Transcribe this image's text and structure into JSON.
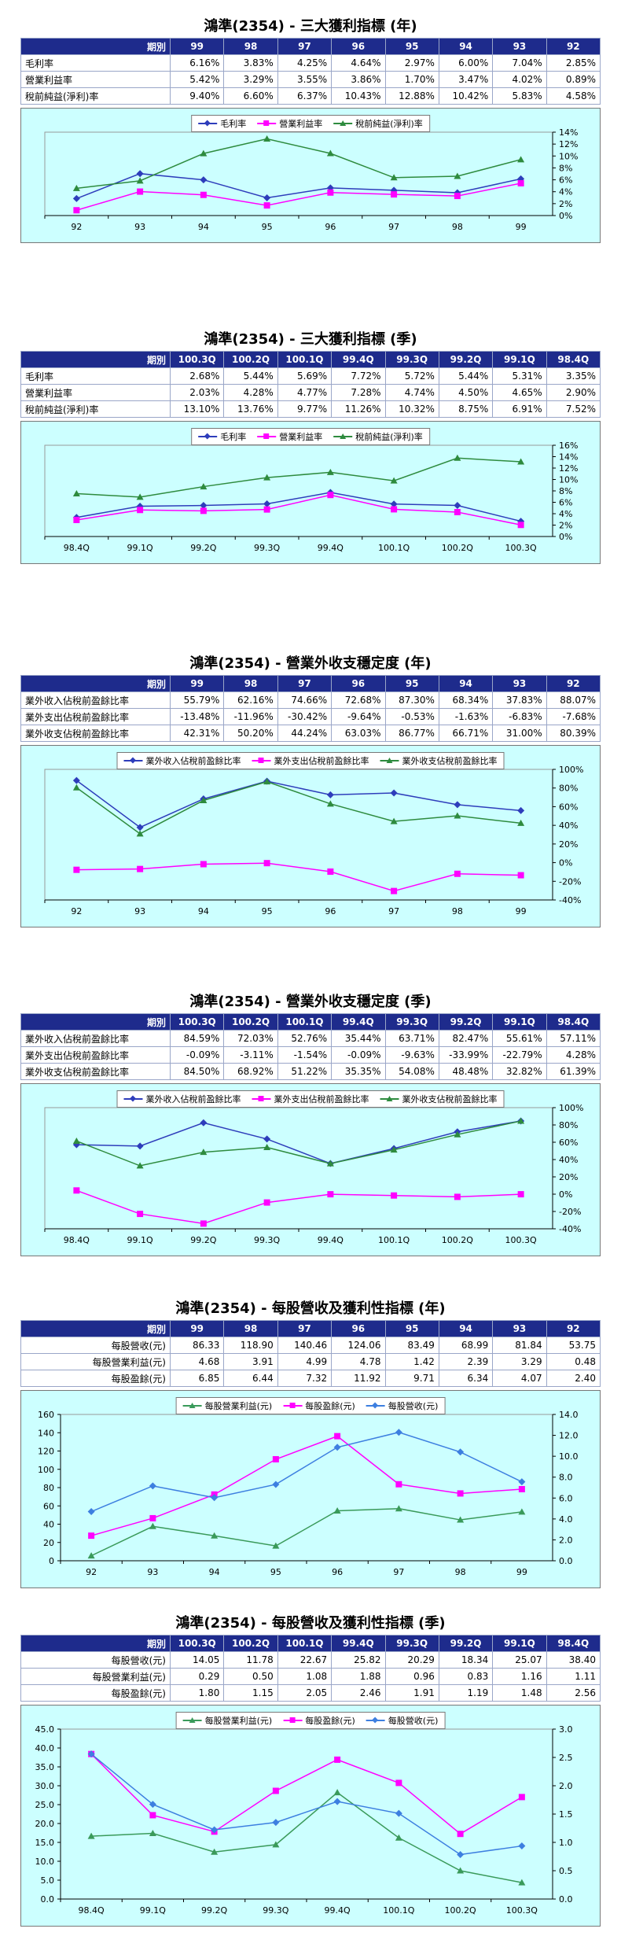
{
  "colors": {
    "header_bg": "#1e2b8c",
    "chart_bg": "#ccffff",
    "series_blue": "#2e3dbb",
    "series_magenta": "#ff00ff",
    "series_green": "#2e8b3e",
    "series_lightblue": "#3d7fe0",
    "series_green2": "#3a9a5a"
  },
  "sections": [
    {
      "title": "鴻準(2354) - 三大獲利指標 (年)",
      "table": {
        "header_label": "期別",
        "columns": [
          "99",
          "98",
          "97",
          "96",
          "95",
          "94",
          "93",
          "92"
        ],
        "rows": [
          {
            "label": "毛利率",
            "values": [
              "6.16%",
              "3.83%",
              "4.25%",
              "4.64%",
              "2.97%",
              "6.00%",
              "7.04%",
              "2.85%"
            ]
          },
          {
            "label": "營業利益率",
            "values": [
              "5.42%",
              "3.29%",
              "3.55%",
              "3.86%",
              "1.70%",
              "3.47%",
              "4.02%",
              "0.89%"
            ]
          },
          {
            "label": "稅前純益(淨利)率",
            "values": [
              "9.40%",
              "6.60%",
              "6.37%",
              "10.43%",
              "12.88%",
              "10.42%",
              "5.83%",
              "4.58%"
            ]
          }
        ]
      },
      "chart_data": {
        "type": "line",
        "categories": [
          "92",
          "93",
          "94",
          "95",
          "96",
          "97",
          "98",
          "99"
        ],
        "series": [
          {
            "name": "毛利率",
            "values": [
              2.85,
              7.04,
              6.0,
              2.97,
              4.64,
              4.25,
              3.83,
              6.16
            ],
            "color": "#2e3dbb",
            "marker": "diamond"
          },
          {
            "name": "營業利益率",
            "values": [
              0.89,
              4.02,
              3.47,
              1.7,
              3.86,
              3.55,
              3.29,
              5.42
            ],
            "color": "#ff00ff",
            "marker": "square"
          },
          {
            "name": "稅前純益(淨利)率",
            "values": [
              4.58,
              5.83,
              10.42,
              12.88,
              10.43,
              6.37,
              6.6,
              9.4
            ],
            "color": "#2e8b3e",
            "marker": "triangle"
          }
        ],
        "right_axis": {
          "min": 0,
          "max": 14,
          "step": 2,
          "ticks": [
            "0%",
            "2%",
            "4%",
            "6%",
            "8%",
            "10%",
            "12%",
            "14%"
          ]
        },
        "left_axis": null,
        "legend_position": "top-center"
      }
    },
    {
      "title": "鴻準(2354) - 三大獲利指標 (季)",
      "table": {
        "header_label": "期別",
        "columns": [
          "100.3Q",
          "100.2Q",
          "100.1Q",
          "99.4Q",
          "99.3Q",
          "99.2Q",
          "99.1Q",
          "98.4Q"
        ],
        "rows": [
          {
            "label": "毛利率",
            "values": [
              "2.68%",
              "5.44%",
              "5.69%",
              "7.72%",
              "5.72%",
              "5.44%",
              "5.31%",
              "3.35%"
            ]
          },
          {
            "label": "營業利益率",
            "values": [
              "2.03%",
              "4.28%",
              "4.77%",
              "7.28%",
              "4.74%",
              "4.50%",
              "4.65%",
              "2.90%"
            ]
          },
          {
            "label": "稅前純益(淨利)率",
            "values": [
              "13.10%",
              "13.76%",
              "9.77%",
              "11.26%",
              "10.32%",
              "8.75%",
              "6.91%",
              "7.52%"
            ]
          }
        ]
      },
      "chart_data": {
        "type": "line",
        "categories": [
          "98.4Q",
          "99.1Q",
          "99.2Q",
          "99.3Q",
          "99.4Q",
          "100.1Q",
          "100.2Q",
          "100.3Q"
        ],
        "series": [
          {
            "name": "毛利率",
            "values": [
              3.35,
              5.31,
              5.44,
              5.72,
              7.72,
              5.69,
              5.44,
              2.68
            ],
            "color": "#2e3dbb",
            "marker": "diamond"
          },
          {
            "name": "營業利益率",
            "values": [
              2.9,
              4.65,
              4.5,
              4.74,
              7.28,
              4.77,
              4.28,
              2.03
            ],
            "color": "#ff00ff",
            "marker": "square"
          },
          {
            "name": "稅前純益(淨利)率",
            "values": [
              7.52,
              6.91,
              8.75,
              10.32,
              11.26,
              9.77,
              13.76,
              13.1
            ],
            "color": "#2e8b3e",
            "marker": "triangle"
          }
        ],
        "right_axis": {
          "min": 0,
          "max": 16,
          "step": 2,
          "ticks": [
            "0%",
            "2%",
            "4%",
            "6%",
            "8%",
            "10%",
            "12%",
            "14%",
            "16%"
          ]
        },
        "left_axis": null,
        "legend_position": "top-center"
      }
    },
    {
      "title": "鴻準(2354) - 營業外收支穩定度 (年)",
      "table": {
        "header_label": "期別",
        "columns": [
          "99",
          "98",
          "97",
          "96",
          "95",
          "94",
          "93",
          "92"
        ],
        "rows": [
          {
            "label": "業外收入佔稅前盈餘比率",
            "values": [
              "55.79%",
              "62.16%",
              "74.66%",
              "72.68%",
              "87.30%",
              "68.34%",
              "37.83%",
              "88.07%"
            ]
          },
          {
            "label": "業外支出佔稅前盈餘比率",
            "values": [
              "-13.48%",
              "-11.96%",
              "-30.42%",
              "-9.64%",
              "-0.53%",
              "-1.63%",
              "-6.83%",
              "-7.68%"
            ]
          },
          {
            "label": "業外收支佔稅前盈餘比率",
            "values": [
              "42.31%",
              "50.20%",
              "44.24%",
              "63.03%",
              "86.77%",
              "66.71%",
              "31.00%",
              "80.39%"
            ]
          }
        ]
      },
      "chart_data": {
        "type": "line",
        "categories": [
          "92",
          "93",
          "94",
          "95",
          "96",
          "97",
          "98",
          "99"
        ],
        "series": [
          {
            "name": "業外收入佔稅前盈餘比率",
            "values": [
              88.07,
              37.83,
              68.34,
              87.3,
              72.68,
              74.66,
              62.16,
              55.79
            ],
            "color": "#2e3dbb",
            "marker": "diamond"
          },
          {
            "name": "業外支出佔稅前盈餘比率",
            "values": [
              -7.68,
              -6.83,
              -1.63,
              -0.53,
              -9.64,
              -30.42,
              -11.96,
              -13.48
            ],
            "color": "#ff00ff",
            "marker": "square"
          },
          {
            "name": "業外收支佔稅前盈餘比率",
            "values": [
              80.39,
              31.0,
              66.71,
              86.77,
              63.03,
              44.24,
              50.2,
              42.31
            ],
            "color": "#2e8b3e",
            "marker": "triangle"
          }
        ],
        "right_axis": {
          "min": -40,
          "max": 100,
          "step": 20,
          "ticks": [
            "-40%",
            "-20%",
            "0%",
            "20%",
            "40%",
            "60%",
            "80%",
            "100%"
          ]
        },
        "left_axis": null,
        "legend_position": "top-center"
      }
    },
    {
      "title": "鴻準(2354) - 營業外收支穩定度 (季)",
      "table": {
        "header_label": "期別",
        "columns": [
          "100.3Q",
          "100.2Q",
          "100.1Q",
          "99.4Q",
          "99.3Q",
          "99.2Q",
          "99.1Q",
          "98.4Q"
        ],
        "rows": [
          {
            "label": "業外收入佔稅前盈餘比率",
            "values": [
              "84.59%",
              "72.03%",
              "52.76%",
              "35.44%",
              "63.71%",
              "82.47%",
              "55.61%",
              "57.11%"
            ]
          },
          {
            "label": "業外支出佔稅前盈餘比率",
            "values": [
              "-0.09%",
              "-3.11%",
              "-1.54%",
              "-0.09%",
              "-9.63%",
              "-33.99%",
              "-22.79%",
              "4.28%"
            ]
          },
          {
            "label": "業外收支佔稅前盈餘比率",
            "values": [
              "84.50%",
              "68.92%",
              "51.22%",
              "35.35%",
              "54.08%",
              "48.48%",
              "32.82%",
              "61.39%"
            ]
          }
        ]
      },
      "chart_data": {
        "type": "line",
        "categories": [
          "98.4Q",
          "99.1Q",
          "99.2Q",
          "99.3Q",
          "99.4Q",
          "100.1Q",
          "100.2Q",
          "100.3Q"
        ],
        "series": [
          {
            "name": "業外收入佔稅前盈餘比率",
            "values": [
              57.11,
              55.61,
              82.47,
              63.71,
              35.44,
              52.76,
              72.03,
              84.59
            ],
            "color": "#2e3dbb",
            "marker": "diamond"
          },
          {
            "name": "業外支出佔稅前盈餘比率",
            "values": [
              4.28,
              -22.79,
              -33.99,
              -9.63,
              -0.09,
              -1.54,
              -3.11,
              -0.09
            ],
            "color": "#ff00ff",
            "marker": "square"
          },
          {
            "name": "業外收支佔稅前盈餘比率",
            "values": [
              61.39,
              32.82,
              48.48,
              54.08,
              35.35,
              51.22,
              68.92,
              84.5
            ],
            "color": "#2e8b3e",
            "marker": "triangle"
          }
        ],
        "right_axis": {
          "min": -40,
          "max": 100,
          "step": 20,
          "ticks": [
            "-40%",
            "-20%",
            "0%",
            "20%",
            "40%",
            "60%",
            "80%",
            "100%"
          ]
        },
        "left_axis": null,
        "legend_position": "top-center"
      }
    },
    {
      "title": "鴻準(2354) - 每股營收及獲利性指標 (年)",
      "table": {
        "header_label": "期別",
        "columns": [
          "99",
          "98",
          "97",
          "96",
          "95",
          "94",
          "93",
          "92"
        ],
        "rows": [
          {
            "label": "每股營收(元)",
            "values": [
              "86.33",
              "118.90",
              "140.46",
              "124.06",
              "83.49",
              "68.99",
              "81.84",
              "53.75"
            ]
          },
          {
            "label": "每股營業利益(元)",
            "values": [
              "4.68",
              "3.91",
              "4.99",
              "4.78",
              "1.42",
              "2.39",
              "3.29",
              "0.48"
            ]
          },
          {
            "label": "每股盈餘(元)",
            "values": [
              "6.85",
              "6.44",
              "7.32",
              "11.92",
              "9.71",
              "6.34",
              "4.07",
              "2.40"
            ]
          }
        ]
      },
      "chart_data": {
        "type": "line",
        "categories": [
          "92",
          "93",
          "94",
          "95",
          "96",
          "97",
          "98",
          "99"
        ],
        "series": [
          {
            "name": "每股營業利益(元)",
            "values": [
              0.48,
              3.29,
              2.39,
              1.42,
              4.78,
              4.99,
              3.91,
              4.68
            ],
            "color": "#3a9a5a",
            "marker": "triangle",
            "axis": "right"
          },
          {
            "name": "每股盈餘(元)",
            "values": [
              2.4,
              4.07,
              6.34,
              9.71,
              11.92,
              7.32,
              6.44,
              6.85
            ],
            "color": "#ff00ff",
            "marker": "square",
            "axis": "right"
          },
          {
            "name": "每股營收(元)",
            "values": [
              53.75,
              81.84,
              68.99,
              83.49,
              124.06,
              140.46,
              118.9,
              86.33
            ],
            "color": "#3d7fe0",
            "marker": "diamond",
            "axis": "left"
          }
        ],
        "left_axis": {
          "min": 0,
          "max": 160,
          "step": 20,
          "ticks": [
            "0",
            "20",
            "40",
            "60",
            "80",
            "100",
            "120",
            "140",
            "160"
          ]
        },
        "right_axis": {
          "min": 0,
          "max": 14,
          "step": 2,
          "ticks": [
            "0.0",
            "2.0",
            "4.0",
            "6.0",
            "8.0",
            "10.0",
            "12.0",
            "14.0"
          ]
        },
        "legend_position": "top-center"
      }
    },
    {
      "title": "鴻準(2354) - 每股營收及獲利性指標 (季)",
      "table": {
        "header_label": "期別",
        "columns": [
          "100.3Q",
          "100.2Q",
          "100.1Q",
          "99.4Q",
          "99.3Q",
          "99.2Q",
          "99.1Q",
          "98.4Q"
        ],
        "rows": [
          {
            "label": "每股營收(元)",
            "values": [
              "14.05",
              "11.78",
              "22.67",
              "25.82",
              "20.29",
              "18.34",
              "25.07",
              "38.40"
            ]
          },
          {
            "label": "每股營業利益(元)",
            "values": [
              "0.29",
              "0.50",
              "1.08",
              "1.88",
              "0.96",
              "0.83",
              "1.16",
              "1.11"
            ]
          },
          {
            "label": "每股盈餘(元)",
            "values": [
              "1.80",
              "1.15",
              "2.05",
              "2.46",
              "1.91",
              "1.19",
              "1.48",
              "2.56"
            ]
          }
        ]
      },
      "chart_data": {
        "type": "line",
        "categories": [
          "98.4Q",
          "99.1Q",
          "99.2Q",
          "99.3Q",
          "99.4Q",
          "100.1Q",
          "100.2Q",
          "100.3Q"
        ],
        "series": [
          {
            "name": "每股營業利益(元)",
            "values": [
              1.11,
              1.16,
              0.83,
              0.96,
              1.88,
              1.08,
              0.5,
              0.29
            ],
            "color": "#3a9a5a",
            "marker": "triangle",
            "axis": "right"
          },
          {
            "name": "每股盈餘(元)",
            "values": [
              2.56,
              1.48,
              1.19,
              1.91,
              2.46,
              2.05,
              1.15,
              1.8
            ],
            "color": "#ff00ff",
            "marker": "square",
            "axis": "right"
          },
          {
            "name": "每股營收(元)",
            "values": [
              38.4,
              25.07,
              18.34,
              20.29,
              25.82,
              22.67,
              11.78,
              14.05
            ],
            "color": "#3d7fe0",
            "marker": "diamond",
            "axis": "left"
          }
        ],
        "left_axis": {
          "min": 0,
          "max": 45,
          "step": 5,
          "ticks": [
            "0.0",
            "5.0",
            "10.0",
            "15.0",
            "20.0",
            "25.0",
            "30.0",
            "35.0",
            "40.0",
            "45.0"
          ]
        },
        "right_axis": {
          "min": 0,
          "max": 3,
          "step": 0.5,
          "ticks": [
            "0.0",
            "0.5",
            "1.0",
            "1.5",
            "2.0",
            "2.5",
            "3.0"
          ]
        },
        "legend_position": "top-center"
      }
    }
  ]
}
